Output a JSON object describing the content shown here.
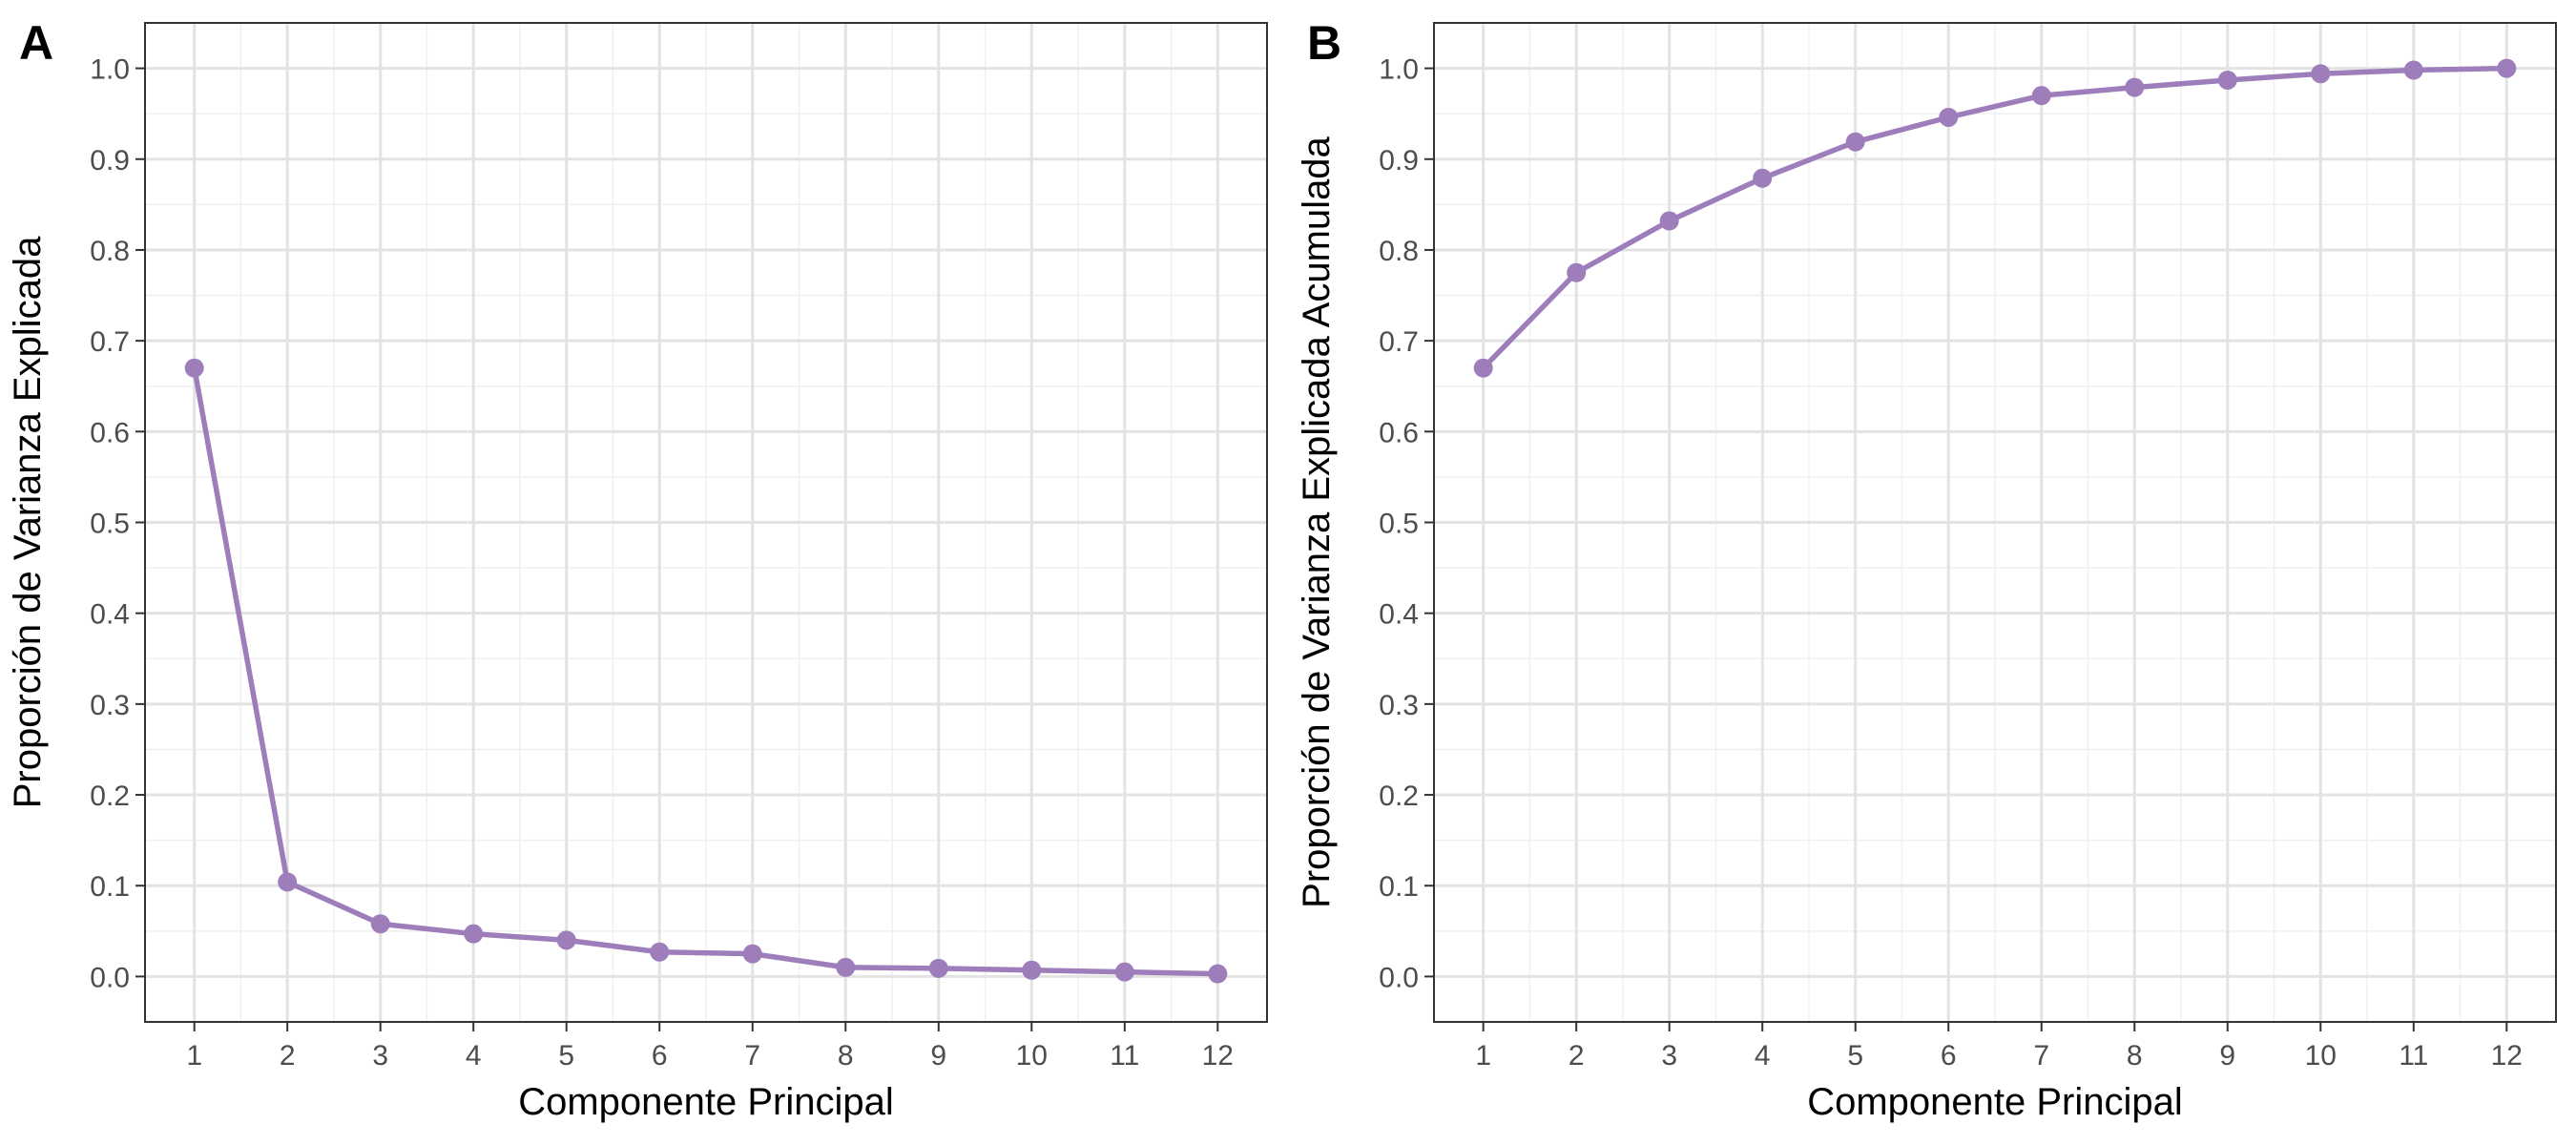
{
  "series_color": "#9e7dbb",
  "chart_data": [
    {
      "panel_label": "A",
      "type": "line",
      "xlabel": "Componente Principal",
      "ylabel": "Proporción de Varianza Explicada",
      "x": [
        1,
        2,
        3,
        4,
        5,
        6,
        7,
        8,
        9,
        10,
        11,
        12
      ],
      "values": [
        0.67,
        0.104,
        0.058,
        0.047,
        0.04,
        0.027,
        0.025,
        0.01,
        0.009,
        0.007,
        0.005,
        0.003
      ],
      "xlim": [
        0.47,
        12.53
      ],
      "ylim": [
        -0.05,
        1.05
      ],
      "xticks": [
        "1",
        "2",
        "3",
        "4",
        "5",
        "6",
        "7",
        "8",
        "9",
        "10",
        "11",
        "12"
      ],
      "yticks": [
        "0.0",
        "0.1",
        "0.2",
        "0.3",
        "0.4",
        "0.5",
        "0.6",
        "0.7",
        "0.8",
        "0.9",
        "1.0"
      ],
      "grid": true,
      "markers": true
    },
    {
      "panel_label": "B",
      "type": "line",
      "xlabel": "Componente Principal",
      "ylabel": "Proporción de Varianza Explicada Acumulada",
      "x": [
        1,
        2,
        3,
        4,
        5,
        6,
        7,
        8,
        9,
        10,
        11,
        12
      ],
      "values": [
        0.67,
        0.775,
        0.832,
        0.879,
        0.919,
        0.946,
        0.97,
        0.979,
        0.987,
        0.994,
        0.998,
        1.0
      ],
      "xlim": [
        0.47,
        12.53
      ],
      "ylim": [
        -0.05,
        1.05
      ],
      "xticks": [
        "1",
        "2",
        "3",
        "4",
        "5",
        "6",
        "7",
        "8",
        "9",
        "10",
        "11",
        "12"
      ],
      "yticks": [
        "0.0",
        "0.1",
        "0.2",
        "0.3",
        "0.4",
        "0.5",
        "0.6",
        "0.7",
        "0.8",
        "0.9",
        "1.0"
      ],
      "grid": true,
      "markers": true
    }
  ]
}
